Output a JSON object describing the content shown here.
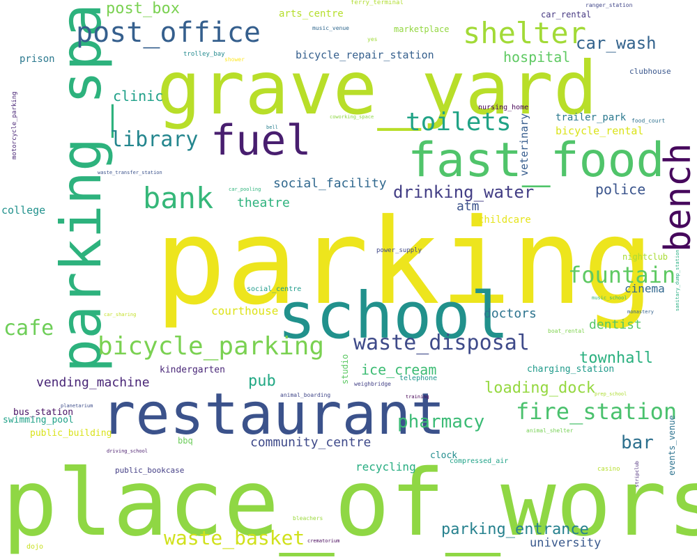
{
  "words": [
    {
      "text": "parking",
      "color": "#ede51d"
    },
    {
      "text": "place_of_worship",
      "color": "#8fd744"
    },
    {
      "text": "grave_yard",
      "color": "#b8de29"
    },
    {
      "text": "parking_space",
      "color": "#2db27d"
    },
    {
      "text": "restaurant",
      "color": "#3b528b"
    },
    {
      "text": "school",
      "color": "#21918c"
    },
    {
      "text": "fast_food",
      "color": "#50c46a"
    },
    {
      "text": "bench",
      "color": "#46085c"
    },
    {
      "text": "fuel",
      "color": "#481e6f"
    },
    {
      "text": "shelter",
      "color": "#a2da37"
    },
    {
      "text": "post_office",
      "color": "#355f8d"
    },
    {
      "text": "bicycle_parking",
      "color": "#7ad151"
    },
    {
      "text": "bank",
      "color": "#35b779"
    },
    {
      "text": "toilets",
      "color": "#20a386"
    },
    {
      "text": "waste_disposal",
      "color": "#3e4a89"
    },
    {
      "text": "fountain",
      "color": "#5ec962"
    },
    {
      "text": "cafe",
      "color": "#6ece58"
    },
    {
      "text": "library",
      "color": "#24868e"
    },
    {
      "text": "waste_basket",
      "color": "#d0e11c"
    },
    {
      "text": "fire_station",
      "color": "#4ac16d"
    },
    {
      "text": "drinking_water",
      "color": "#433e85"
    },
    {
      "text": "pharmacy",
      "color": "#3bbb75"
    },
    {
      "text": "parking_entrance",
      "color": "#26818e"
    },
    {
      "text": "car_wash",
      "color": "#33638d"
    },
    {
      "text": "loading_dock",
      "color": "#95d840"
    },
    {
      "text": "townhall",
      "color": "#2ab07f"
    },
    {
      "text": "bar",
      "color": "#2d708e"
    },
    {
      "text": "vending_machine",
      "color": "#482576"
    },
    {
      "text": "post_box",
      "color": "#7ad151"
    },
    {
      "text": "hospital",
      "color": "#5ec962"
    },
    {
      "text": "clinic",
      "color": "#1fa088"
    },
    {
      "text": "social_facility",
      "color": "#30688e"
    },
    {
      "text": "police",
      "color": "#3a548c"
    },
    {
      "text": "atm",
      "color": "#3b528b"
    },
    {
      "text": "doctors",
      "color": "#2c738e"
    },
    {
      "text": "dentist",
      "color": "#56c667"
    },
    {
      "text": "pub",
      "color": "#22a884"
    },
    {
      "text": "ice_cream",
      "color": "#3dbc74"
    },
    {
      "text": "community_centre",
      "color": "#3e4989"
    },
    {
      "text": "theatre",
      "color": "#2db27d"
    },
    {
      "text": "cinema",
      "color": "#31678e"
    },
    {
      "text": "courthouse",
      "color": "#dde318"
    },
    {
      "text": "university",
      "color": "#38588c"
    },
    {
      "text": "recycling",
      "color": "#27ad81"
    },
    {
      "text": "childcare",
      "color": "#e5e419"
    },
    {
      "text": "bicycle_rental",
      "color": "#dae319"
    },
    {
      "text": "trailer_park",
      "color": "#2a788e"
    },
    {
      "text": "veterinary",
      "color": "#365c8d"
    },
    {
      "text": "charging_station",
      "color": "#1f9a8a"
    },
    {
      "text": "bicycle_repair_station",
      "color": "#355f8d"
    },
    {
      "text": "college",
      "color": "#21918c"
    },
    {
      "text": "prison",
      "color": "#2a788e"
    },
    {
      "text": "arts_centre",
      "color": "#b5de2b"
    },
    {
      "text": "car_rental",
      "color": "#453781"
    },
    {
      "text": "kindergarten",
      "color": "#482677"
    },
    {
      "text": "nightclub",
      "color": "#a8db34"
    },
    {
      "text": "clock",
      "color": "#228d8d"
    },
    {
      "text": "bus_station",
      "color": "#471063"
    },
    {
      "text": "swimming_pool",
      "color": "#1fa188"
    },
    {
      "text": "public_building",
      "color": "#d8e219"
    },
    {
      "text": "bbq",
      "color": "#6ccd5a"
    },
    {
      "text": "telephone",
      "color": "#1f968b"
    },
    {
      "text": "public_bookcase",
      "color": "#433e85"
    },
    {
      "text": "events_venue",
      "color": "#2c728e"
    },
    {
      "text": "studio",
      "color": "#5cc863"
    },
    {
      "text": "marketplace",
      "color": "#93d741"
    },
    {
      "text": "clubhouse",
      "color": "#39568c"
    },
    {
      "text": "nursing_home",
      "color": "#440154"
    },
    {
      "text": "compressed_air",
      "color": "#1fa287"
    },
    {
      "text": "motorcycle_parking",
      "color": "#482475"
    },
    {
      "text": "food_court",
      "color": "#2d708e"
    },
    {
      "text": "music_venue",
      "color": "#31688e"
    },
    {
      "text": "ferry_terminal",
      "color": "#b0dd2f"
    },
    {
      "text": "ranger_station",
      "color": "#404688"
    },
    {
      "text": "trolley_bay",
      "color": "#23898e"
    },
    {
      "text": "shower",
      "color": "#fde725"
    },
    {
      "text": "yes",
      "color": "#a0da39"
    },
    {
      "text": "bell",
      "color": "#277f8e"
    },
    {
      "text": "coworking_space",
      "color": "#8ed645"
    },
    {
      "text": "waste_transfer_station",
      "color": "#3b528b"
    },
    {
      "text": "car_pooling",
      "color": "#2fb47c"
    },
    {
      "text": "power_supply",
      "color": "#3f4788"
    },
    {
      "text": "social_centre",
      "color": "#1e9b8a"
    },
    {
      "text": "car_sharing",
      "color": "#c2df23"
    },
    {
      "text": "music_school",
      "color": "#35b779"
    },
    {
      "text": "monastery",
      "color": "#34618d"
    },
    {
      "text": "sanitary_dump_station",
      "color": "#26ad81"
    },
    {
      "text": "boat_rental",
      "color": "#7fd34e"
    },
    {
      "text": "animal_boarding",
      "color": "#404688"
    },
    {
      "text": "weighbridge",
      "color": "#424086"
    },
    {
      "text": "training",
      "color": "#440154"
    },
    {
      "text": "prep_school",
      "color": "#addc30"
    },
    {
      "text": "animal_shelter",
      "color": "#75d054"
    },
    {
      "text": "planetarium",
      "color": "#3d4d8a"
    },
    {
      "text": "driving_school",
      "color": "#481a6c"
    },
    {
      "text": "casino",
      "color": "#b5de2b"
    },
    {
      "text": "stripclub",
      "color": "#482878"
    },
    {
      "text": "bleachers",
      "color": "#9bd93c"
    },
    {
      "text": "crematorium",
      "color": "#46075a"
    },
    {
      "text": "dojo",
      "color": "#c8e020"
    }
  ]
}
